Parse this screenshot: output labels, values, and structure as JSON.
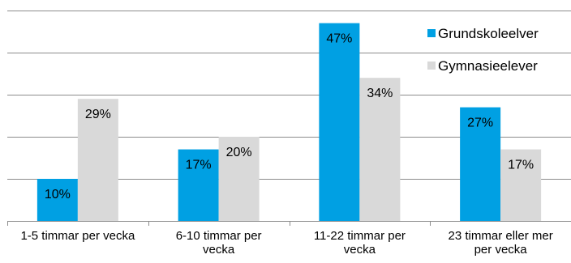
{
  "chart_data": {
    "type": "bar",
    "categories": [
      [
        "1-5 timmar per vecka"
      ],
      [
        "6-10 timmar per",
        "vecka"
      ],
      [
        "11-22 timmar per",
        "vecka"
      ],
      [
        "23 timmar eller mer",
        "per vecka"
      ]
    ],
    "series": [
      {
        "name": "Grundskoleelver",
        "values": [
          10,
          17,
          47,
          27
        ],
        "labels": [
          "10%",
          "17%",
          "47%",
          "27%"
        ],
        "color": "#00a0e3"
      },
      {
        "name": "Gymnasieelever",
        "values": [
          29,
          20,
          34,
          17
        ],
        "labels": [
          "29%",
          "20%",
          "34%",
          "17%"
        ],
        "color": "#d9d9d9"
      }
    ],
    "ylim": [
      0,
      50
    ],
    "grid_step": 10,
    "grid": true,
    "legend_position": "top-right",
    "gridline_color": "#8c8c8c"
  }
}
